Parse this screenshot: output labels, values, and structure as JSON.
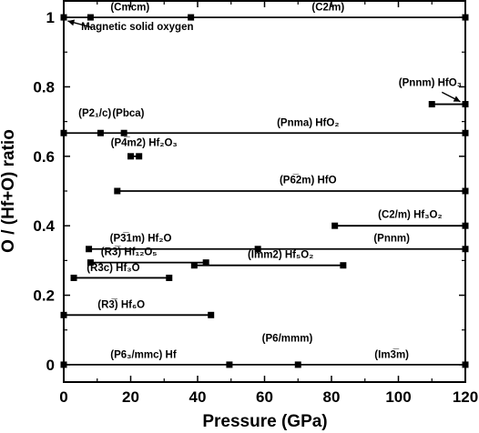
{
  "chart_data": {
    "type": "scatter",
    "title": "",
    "xlabel": "Pressure (GPa)",
    "ylabel": "O / (Hf+O) ratio",
    "xlim": [
      0,
      120
    ],
    "ylim": [
      -0.05,
      1.05
    ],
    "xticks": [
      0,
      20,
      40,
      60,
      80,
      100,
      120
    ],
    "yticks": [
      0,
      0.2,
      0.4,
      0.6,
      0.8,
      1
    ],
    "x_tick_labels": [
      "0",
      "20",
      "40",
      "60",
      "80",
      "100",
      "120"
    ],
    "y_tick_labels": [
      "0",
      "0.2",
      "0.4",
      "0.6",
      "0.8",
      "1"
    ],
    "grid": false,
    "ranges": [
      {
        "y": 1.0,
        "points": [
          0,
          8,
          38,
          120
        ]
      },
      {
        "y": 0.75,
        "points": [
          110,
          120
        ]
      },
      {
        "y": 0.667,
        "points": [
          0,
          11,
          18,
          120
        ]
      },
      {
        "y": 0.6,
        "points": [
          20,
          22.5
        ]
      },
      {
        "y": 0.5,
        "points": [
          16,
          120
        ]
      },
      {
        "y": 0.4,
        "points": [
          81,
          120
        ]
      },
      {
        "y": 0.333,
        "points": [
          7.5,
          58,
          120
        ]
      },
      {
        "y": 0.294,
        "points": [
          8,
          42.5
        ]
      },
      {
        "y": 0.286,
        "points": [
          39,
          83.5
        ]
      },
      {
        "y": 0.25,
        "points": [
          3,
          31.5
        ]
      },
      {
        "y": 0.143,
        "points": [
          0,
          44
        ]
      },
      {
        "y": 0.0,
        "points": [
          0,
          49.5,
          70,
          120
        ]
      }
    ],
    "annotations": [
      {
        "text": "(Cmcm)",
        "x": 19.8,
        "y": 1.02
      },
      {
        "text": "(C2/m)",
        "x": 79,
        "y": 1.02
      },
      {
        "text": "Magnetic solid oxygen",
        "x": 22,
        "y": 0.963
      },
      {
        "text": "(Pnnm) HfO₃",
        "x": 109.5,
        "y": 0.802
      },
      {
        "text": "(P2₁/c)",
        "x": 9.3,
        "y": 0.715
      },
      {
        "text": "(Pbca)",
        "x": 19.3,
        "y": 0.715
      },
      {
        "text": "(Pnma) HfO₂",
        "x": 73,
        "y": 0.687
      },
      {
        "text": "(P4̅m2) Hf₂O₃",
        "x": 24,
        "y": 0.629
      },
      {
        "text": "(P6̅2m) HfO",
        "x": 73,
        "y": 0.522
      },
      {
        "text": "(C2/m) Hf₃O₂",
        "x": 103.5,
        "y": 0.423
      },
      {
        "text": "(P3̅1m) Hf₂O",
        "x": 23,
        "y": 0.355
      },
      {
        "text": "(Pnnm)",
        "x": 98,
        "y": 0.355
      },
      {
        "text": "(R3̅) Hf₁₂O₅",
        "x": 19.5,
        "y": 0.315
      },
      {
        "text": "(Imm2) Hf₅O₂",
        "x": 64.8,
        "y": 0.308
      },
      {
        "text": "(R3̅c) Hf₃O",
        "x": 14.8,
        "y": 0.27
      },
      {
        "text": "(R3̅) Hf₆O",
        "x": 17.2,
        "y": 0.163
      },
      {
        "text": "(P6₃/mmc) Hf",
        "x": 23.8,
        "y": 0.02
      },
      {
        "text": "(P6/mmm)",
        "x": 66.8,
        "y": 0.067
      },
      {
        "text": "(Im3̅m)",
        "x": 98,
        "y": 0.02
      }
    ]
  }
}
